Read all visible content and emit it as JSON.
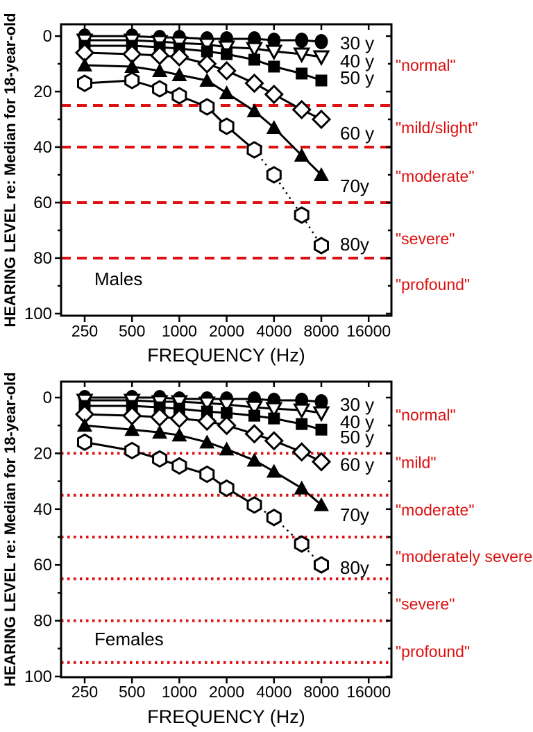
{
  "colors": {
    "red": "#dd1111",
    "black": "#000000",
    "background": "#ffffff"
  },
  "chart_data": [
    {
      "type": "line",
      "panel_title": "Males",
      "xlabel": "FREQUENCY (Hz)",
      "ylabel": "HEARING LEVEL re: Median for 18-year-old",
      "x_scale": "log2",
      "x_ticks": [
        250,
        500,
        1000,
        2000,
        4000,
        8000,
        16000
      ],
      "x_tick_labels": [
        "250",
        "500",
        "1000",
        "2000",
        "4000",
        "8000",
        "16000"
      ],
      "y_ticks": [
        0,
        20,
        40,
        60,
        80,
        100
      ],
      "y_tick_labels": [
        "0",
        "20",
        "40",
        "60",
        "80",
        "100"
      ],
      "y_minor_ticks": [
        10,
        30,
        50,
        70,
        90
      ],
      "ylim": [
        0,
        100
      ],
      "y_inverted": true,
      "x": [
        250,
        500,
        750,
        1000,
        1500,
        2000,
        3000,
        4000,
        6000,
        8000
      ],
      "series": [
        {
          "name": "30 y",
          "marker": "circle-filled",
          "label_at": 2.5,
          "values": [
            0,
            0,
            0.5,
            0.5,
            1,
            1,
            1,
            1.5,
            1.5,
            2
          ]
        },
        {
          "name": "40 y",
          "marker": "triangle-down-open",
          "label_at": 9,
          "values": [
            1.5,
            1.5,
            2,
            2.5,
            3,
            4,
            4.5,
            5.5,
            6.5,
            7.5
          ]
        },
        {
          "name": "50 y",
          "marker": "square-filled",
          "label_at": 15,
          "values": [
            3.5,
            3.5,
            4,
            4.5,
            5.5,
            6.5,
            8.5,
            11,
            13.5,
            16
          ]
        },
        {
          "name": "60 y",
          "marker": "diamond-open",
          "label_at": 35,
          "values": [
            6,
            6.5,
            7,
            7.5,
            10,
            12.5,
            17,
            21,
            26.5,
            30
          ]
        },
        {
          "name": "70y",
          "marker": "triangle-up-filled",
          "label_at": 54,
          "values": [
            10.5,
            11,
            12.5,
            14,
            16,
            20.5,
            27,
            33,
            43,
            50
          ]
        },
        {
          "name": "80y",
          "marker": "hexagon-open",
          "label_at": 75,
          "dotted_from_x": 3000,
          "values": [
            17,
            16,
            19,
            21.5,
            25.5,
            32.5,
            41,
            50,
            64.5,
            75.5
          ]
        }
      ],
      "threshold_lines": {
        "style": "dashed",
        "values": [
          25,
          40,
          60,
          80
        ]
      },
      "classifications": [
        {
          "label": "\"normal\"",
          "at": 10.5
        },
        {
          "label": "\"mild/slight\"",
          "at": 33
        },
        {
          "label": "\"moderate\"",
          "at": 50.5
        },
        {
          "label": "\"severe\"",
          "at": 73
        },
        {
          "label": "\"profound\"",
          "at": 89.5
        }
      ]
    },
    {
      "type": "line",
      "panel_title": "Females",
      "xlabel": "FREQUENCY (Hz)",
      "ylabel": "HEARING LEVEL re: Median for 18-year-old",
      "x_scale": "log2",
      "x_ticks": [
        250,
        500,
        1000,
        2000,
        4000,
        8000,
        16000
      ],
      "x_tick_labels": [
        "250",
        "500",
        "1000",
        "2000",
        "4000",
        "8000",
        "16000"
      ],
      "y_ticks": [
        0,
        20,
        40,
        60,
        80,
        100
      ],
      "y_tick_labels": [
        "0",
        "20",
        "40",
        "60",
        "80",
        "100"
      ],
      "y_minor_ticks": [
        10,
        30,
        50,
        70,
        90
      ],
      "ylim": [
        0,
        100
      ],
      "y_inverted": true,
      "x": [
        250,
        500,
        750,
        1000,
        1500,
        2000,
        3000,
        4000,
        6000,
        8000
      ],
      "series": [
        {
          "name": "30 y",
          "marker": "circle-filled",
          "label_at": 2.5,
          "values": [
            0,
            0,
            0,
            0.5,
            0.5,
            0.5,
            0.5,
            1,
            1,
            1.5
          ]
        },
        {
          "name": "40 y",
          "marker": "triangle-down-open",
          "label_at": 8.7,
          "values": [
            1,
            1,
            1.5,
            1.5,
            2,
            2.5,
            3.5,
            4,
            4.5,
            5.5
          ]
        },
        {
          "name": "50 y",
          "marker": "square-filled",
          "label_at": 14.2,
          "values": [
            3,
            3,
            3.5,
            4,
            5,
            5.5,
            6.5,
            7.5,
            9.5,
            11.5
          ]
        },
        {
          "name": "60 y",
          "marker": "diamond-open",
          "label_at": 24,
          "values": [
            6,
            6.5,
            7,
            7.5,
            8.5,
            10,
            13,
            15.5,
            19.5,
            23
          ]
        },
        {
          "name": "70y",
          "marker": "triangle-up-filled",
          "label_at": 42,
          "values": [
            10,
            11.5,
            12.5,
            13.5,
            16,
            18.5,
            22.5,
            26.5,
            32.5,
            38.5
          ]
        },
        {
          "name": "80y",
          "marker": "hexagon-open",
          "label_at": 61,
          "dotted_from_x": 3000,
          "values": [
            16,
            19,
            22,
            24.5,
            27.5,
            32.5,
            38.5,
            43,
            52.5,
            60
          ]
        }
      ],
      "threshold_lines": {
        "style": "dotted",
        "values": [
          20,
          35,
          50,
          65,
          80,
          95
        ]
      },
      "classifications": [
        {
          "label": "\"normal\"",
          "at": 6.2
        },
        {
          "label": "\"mild\"",
          "at": 23.3
        },
        {
          "label": "\"moderate\"",
          "at": 40.3
        },
        {
          "label": "\"moderately severe\"",
          "at": 57
        },
        {
          "label": "\"severe\"",
          "at": 74
        },
        {
          "label": "\"profound\"",
          "at": 91
        }
      ]
    }
  ]
}
